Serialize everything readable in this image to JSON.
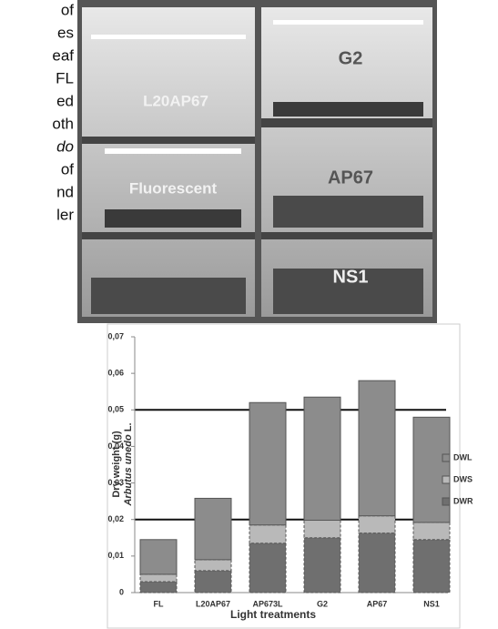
{
  "text_fragments": [
    "of",
    "es",
    "eaf",
    "FL",
    "ed",
    "oth",
    "do",
    "of",
    "nd",
    "ler"
  ],
  "photo": {
    "labels": [
      "L20AP67",
      "Fluorescent",
      "G2",
      "AP67",
      "NS1"
    ]
  },
  "chart_data": {
    "type": "bar",
    "stacked": true,
    "ylabel": "Dry weight (g)",
    "ylabel_species": "Arbutus unedo",
    "ylabel_author": "L.",
    "xlabel": "Light treatments",
    "categories": [
      "FL",
      "L20AP67",
      "AP673L",
      "G2",
      "AP67",
      "NS1"
    ],
    "series": [
      {
        "name": "DWR",
        "color": "#6f6f6f",
        "values": [
          0.003,
          0.006,
          0.0135,
          0.015,
          0.0163,
          0.0145
        ]
      },
      {
        "name": "DWS",
        "color": "#b9b9b9",
        "values": [
          0.002,
          0.003,
          0.005,
          0.0048,
          0.0047,
          0.0047
        ]
      },
      {
        "name": "DWL",
        "color": "#8c8c8c",
        "values": [
          0.0095,
          0.0168,
          0.0335,
          0.0337,
          0.037,
          0.0288
        ]
      }
    ],
    "ylim": [
      0,
      0.07
    ],
    "yticks": [
      0,
      {
        "value": 0.01,
        "label": "0,01"
      },
      {
        "value": 0.02,
        "label": "0,02"
      },
      {
        "value": 0.03,
        "label": "0,03"
      },
      {
        "value": 0.04,
        "label": "0,04"
      },
      {
        "value": 0.05,
        "label": "0,05"
      },
      {
        "value": 0.06,
        "label": "0,06"
      },
      {
        "value": 0.07,
        "label": "0,07"
      }
    ],
    "hlines": [
      0.02,
      0.05
    ],
    "legend": "right"
  }
}
